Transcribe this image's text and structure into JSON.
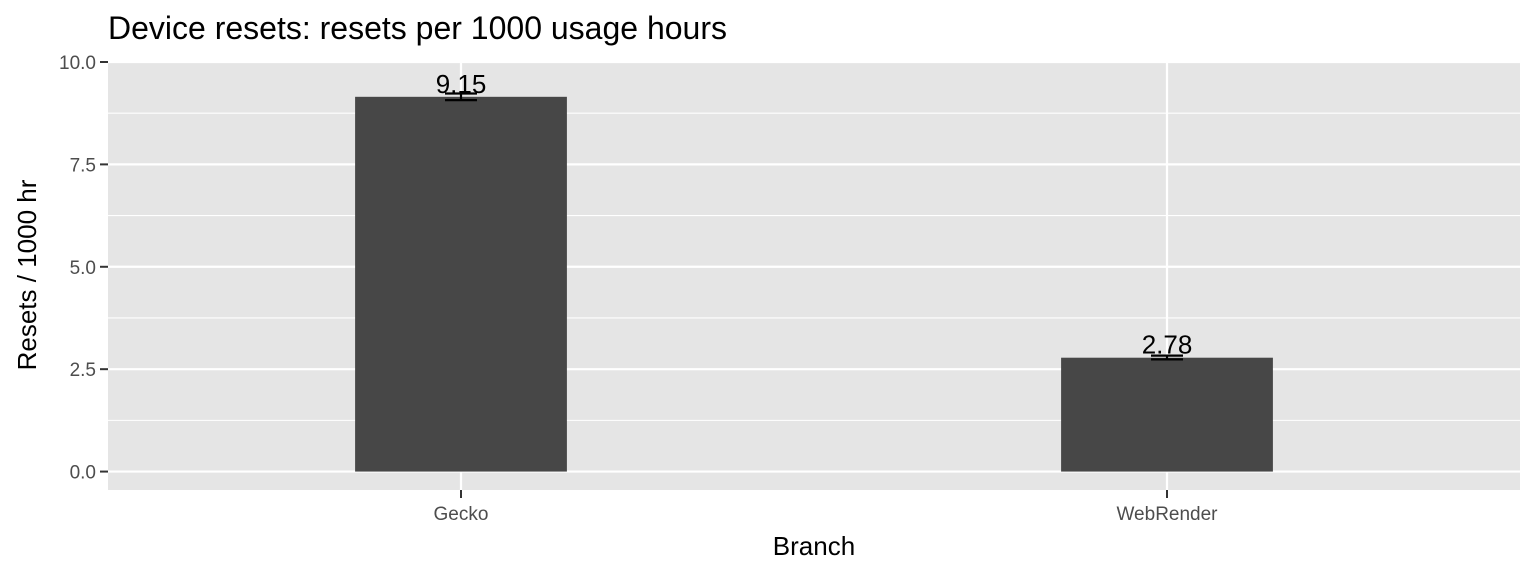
{
  "chart_data": {
    "type": "bar",
    "title": "Device resets: resets per 1000 usage hours",
    "xlabel": "Branch",
    "ylabel": "Resets / 1000 hr",
    "categories": [
      "Gecko",
      "WebRender"
    ],
    "values": [
      9.15,
      2.78
    ],
    "value_labels": [
      "9.15",
      "2.78"
    ],
    "error_bars": [
      {
        "low": 9.07,
        "high": 9.23
      },
      {
        "low": 2.74,
        "high": 2.83
      }
    ],
    "ylim": [
      -0.45,
      10.0
    ],
    "yticks": [
      0.0,
      2.5,
      5.0,
      7.5,
      10.0
    ],
    "ytick_labels": [
      "0.0",
      "2.5",
      "5.0",
      "7.5",
      "10.0"
    ],
    "grid": true,
    "colors": {
      "bar": "#474747",
      "panel": "#e5e5e5",
      "grid": "#ffffff",
      "errorbar": "#000000"
    }
  }
}
